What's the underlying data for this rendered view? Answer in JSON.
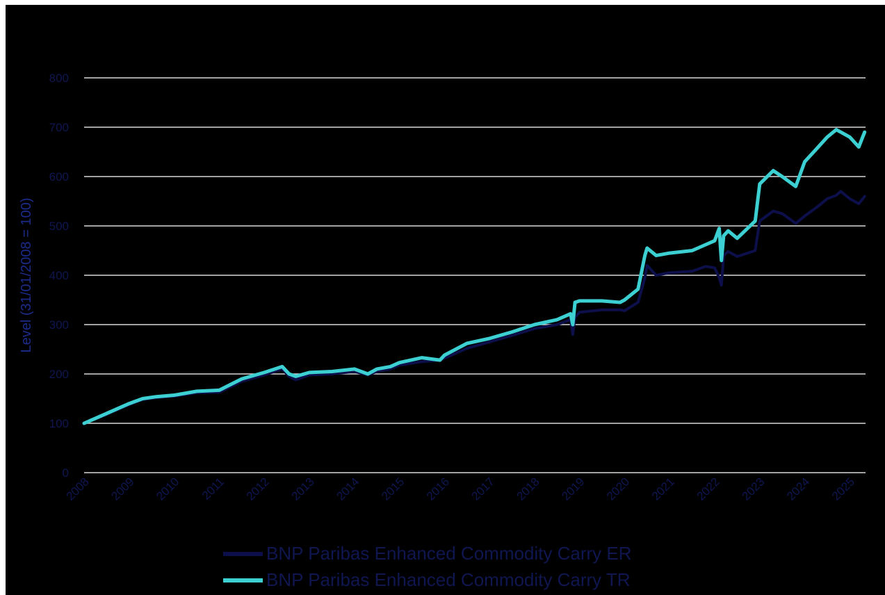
{
  "chart_data": {
    "type": "line",
    "title": "",
    "ylabel": "Level (31/01/2008 = 100)",
    "xlabel": "",
    "ylim": [
      0,
      800
    ],
    "y_ticks": [
      0,
      100,
      200,
      300,
      400,
      500,
      600,
      700,
      800
    ],
    "xlim": [
      2008.0,
      2025.35
    ],
    "x_ticks": [
      "2008",
      "2009",
      "2010",
      "2011",
      "2012",
      "2013",
      "2014",
      "2015",
      "2016",
      "2017",
      "2018",
      "2019",
      "2020",
      "2021",
      "2022",
      "2023",
      "2024",
      "2025"
    ],
    "grid": true,
    "legend_position": "bottom",
    "series": [
      {
        "name": "BNP Paribas Enhanced Commodity Carry ER",
        "color": "#0d0f4a",
        "x": [
          2008.0,
          2008.5,
          2009.0,
          2009.3,
          2009.6,
          2010.0,
          2010.5,
          2011.0,
          2011.5,
          2012.0,
          2012.4,
          2012.55,
          2012.7,
          2013.0,
          2013.5,
          2014.0,
          2014.3,
          2014.5,
          2014.8,
          2015.0,
          2015.5,
          2015.9,
          2016.0,
          2016.5,
          2017.0,
          2017.5,
          2018.0,
          2018.5,
          2018.8,
          2018.85,
          2018.9,
          2019.0,
          2019.5,
          2019.9,
          2020.0,
          2020.3,
          2020.45,
          2020.5,
          2020.7,
          2021.0,
          2021.5,
          2021.8,
          2022.0,
          2022.1,
          2022.15,
          2022.2,
          2022.3,
          2022.5,
          2022.9,
          2023.0,
          2023.3,
          2023.5,
          2023.8,
          2024.0,
          2024.3,
          2024.5,
          2024.7,
          2024.8,
          2025.0,
          2025.2,
          2025.33
        ],
        "y": [
          100,
          118,
          138,
          148,
          152,
          155,
          162,
          163,
          185,
          198,
          210,
          195,
          188,
          198,
          200,
          205,
          198,
          205,
          210,
          218,
          225,
          228,
          232,
          252,
          265,
          278,
          292,
          300,
          310,
          280,
          315,
          325,
          330,
          330,
          328,
          345,
          395,
          420,
          400,
          405,
          408,
          418,
          415,
          395,
          380,
          440,
          448,
          438,
          450,
          510,
          530,
          525,
          505,
          520,
          540,
          555,
          562,
          570,
          555,
          545,
          560
        ]
      },
      {
        "name": "BNP Paribas Enhanced Commodity Carry TR",
        "color": "#3cd0d2",
        "x": [
          2008.0,
          2008.5,
          2009.0,
          2009.3,
          2009.6,
          2010.0,
          2010.5,
          2011.0,
          2011.5,
          2012.0,
          2012.4,
          2012.55,
          2012.7,
          2013.0,
          2013.5,
          2014.0,
          2014.3,
          2014.5,
          2014.8,
          2015.0,
          2015.5,
          2015.9,
          2016.0,
          2016.5,
          2017.0,
          2017.5,
          2018.0,
          2018.5,
          2018.8,
          2018.85,
          2018.9,
          2019.0,
          2019.5,
          2019.9,
          2020.0,
          2020.3,
          2020.45,
          2020.5,
          2020.7,
          2021.0,
          2021.5,
          2021.8,
          2022.0,
          2022.1,
          2022.15,
          2022.2,
          2022.3,
          2022.5,
          2022.9,
          2023.0,
          2023.3,
          2023.5,
          2023.8,
          2024.0,
          2024.3,
          2024.5,
          2024.7,
          2024.8,
          2025.0,
          2025.2,
          2025.33
        ],
        "y": [
          100,
          120,
          140,
          150,
          154,
          157,
          165,
          167,
          190,
          203,
          215,
          200,
          195,
          203,
          205,
          210,
          200,
          210,
          215,
          223,
          233,
          228,
          238,
          262,
          272,
          285,
          300,
          310,
          322,
          300,
          345,
          348,
          348,
          345,
          350,
          372,
          440,
          455,
          440,
          445,
          450,
          462,
          470,
          495,
          430,
          480,
          490,
          475,
          510,
          585,
          612,
          600,
          580,
          630,
          660,
          680,
          695,
          690,
          680,
          660,
          690
        ]
      }
    ]
  }
}
